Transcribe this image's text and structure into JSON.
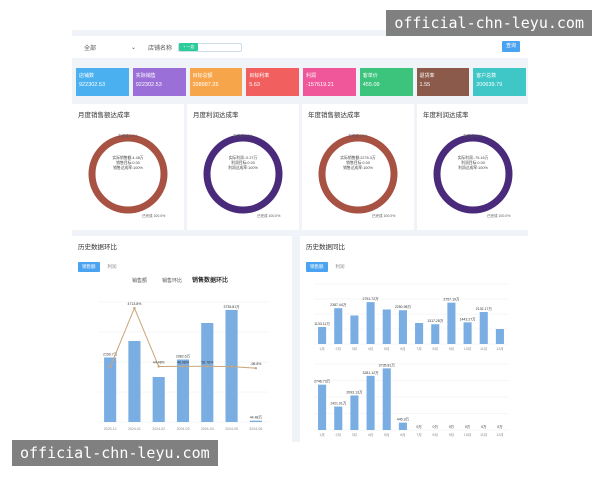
{
  "watermark": "official-chn-leyu.com",
  "filter": {
    "scope_value": "全部",
    "store_label": "店铺名称",
    "store_tag": "+ 一店",
    "query_label": "查询"
  },
  "colors": {
    "red": "#a85244",
    "purple": "#4a2a7a",
    "bar": "#7aaee3",
    "line": "#c9a57a"
  },
  "cards": [
    {
      "label": "店铺数",
      "value": "922302.53",
      "color": "#4ab0f0"
    },
    {
      "label": "实际销售",
      "value": "922302.53",
      "color": "#9b6fd8"
    },
    {
      "label": "目标总额",
      "value": "398987.25",
      "color": "#f7a54a"
    },
    {
      "label": "目标利率",
      "value": "5.63",
      "color": "#f25f5f"
    },
    {
      "label": "利润",
      "value": "-157619.21",
      "color": "#f0579b"
    },
    {
      "label": "客单价",
      "value": "455.09",
      "color": "#3cc47c"
    },
    {
      "label": "退货率",
      "value": "1.55",
      "color": "#8b5a4a"
    },
    {
      "label": "客户总数",
      "value": "200639.79",
      "color": "#3fc6c6"
    }
  ],
  "donuts": [
    {
      "title": "月度销售额达成率",
      "ring": "#a85244",
      "unreached": "未完成 0.0%",
      "reached": "已完成 100.0%",
      "c1": "实际销售额:4.48万",
      "c2": "销售目标:0.00",
      "c3": "销售达成率:100%"
    },
    {
      "title": "月度利润达成率",
      "ring": "#4a2a7a",
      "unreached": "未完成 0.0%",
      "reached": "已完成 100.0%",
      "c1": "实际利润:-0.27万",
      "c2": "利润目标:0.00",
      "c3": "利润达成率:100%"
    },
    {
      "title": "年度销售额达成率",
      "ring": "#a85244",
      "unreached": "未完成 0.0%",
      "reached": "已完成 100.0%",
      "c1": "实际销售额:2276.3万",
      "c2": "销售目标:0.00",
      "c3": "销售达成率:100%"
    },
    {
      "title": "年度利润达成率",
      "ring": "#4a2a7a",
      "unreached": "未完成 0.0%",
      "reached": "已完成 100.0%",
      "c1": "实际利润:-75.16万",
      "c2": "利润目标:0.00",
      "c3": "利润达成率:100%"
    }
  ],
  "history_ring": {
    "title": "历史数据环比",
    "tabs": [
      "销售额",
      "利润"
    ],
    "chart_data": {
      "type": "bar",
      "title": "销售数据环比",
      "legend": [
        "销售额",
        "销售环比"
      ],
      "categories": [
        "2023-12",
        "2024-01",
        "2024-02",
        "2024-03",
        "2024-04",
        "2024-05",
        "2024-06"
      ],
      "bar_labels": [
        "2150.7万",
        "",
        "",
        "2082.6万",
        "",
        "3735.81万",
        "44.48万"
      ],
      "line_labels": [
        "",
        "4713.8%",
        "44.48%",
        "48.98%",
        "58.78%",
        "",
        "-98.8%"
      ],
      "values": [
        2150.7,
        2700,
        1500,
        2082.6,
        3300,
        3735.81,
        44.48
      ],
      "ratio": [
        0,
        4713.8,
        44.48,
        48.98,
        58.78,
        30,
        -98.8
      ],
      "ylim": [
        0,
        4000
      ]
    }
  },
  "history_yoy": {
    "title": "历史数据同比",
    "tabs": [
      "销售额",
      "利润"
    ],
    "chart_data": {
      "type": "bar",
      "categories": [
        "1月",
        "2月",
        "3月",
        "4月",
        "5月",
        "6月",
        "7月",
        "8月",
        "9月",
        "10月",
        "11月",
        "12月"
      ],
      "top_values": [
        1133.11,
        2387.44,
        1900,
        2791.72,
        2300,
        2250.98,
        1400,
        1317.28,
        2757.19,
        1443.27,
        2132.17,
        1000
      ],
      "top_labels": [
        "1133.11万",
        "2387.44万",
        "",
        "2791.72万",
        "",
        "2250.98万",
        "",
        "1317.28万",
        "2757.19万",
        "1443.27万",
        "2132.17万",
        ""
      ],
      "bottom_values": [
        2746.73,
        1421.91,
        2093.13,
        3281.12,
        3735.81,
        445.9,
        0,
        0,
        0,
        0,
        0,
        0
      ],
      "bottom_labels": [
        "2746.73万",
        "1421.91万",
        "2093.13万",
        "3281.12万",
        "3735.81万",
        "445.9万",
        "0万",
        "0万",
        "0万",
        "0万",
        "0万",
        "0万"
      ],
      "ylim": [
        0,
        4000
      ]
    }
  }
}
